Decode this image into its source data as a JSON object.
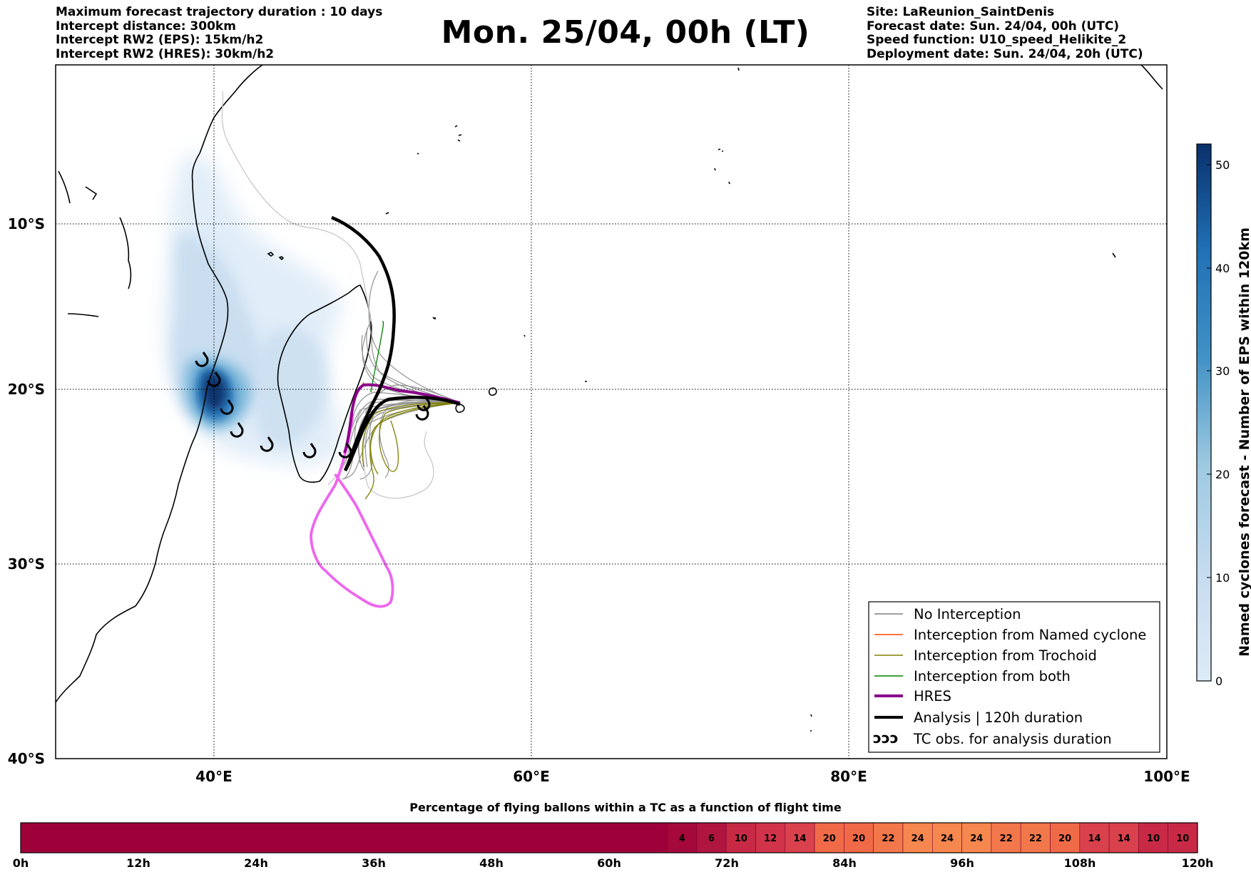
{
  "header": {
    "left": [
      "Maximum forecast trajectory duration : 10 days",
      "Intercept distance: 300km",
      "Intercept RW2 (EPS):  15km/h2",
      "Intercept RW2 (HRES): 30km/h2"
    ],
    "title": "Mon. 25/04, 00h (LT)",
    "right": [
      "Site: LaReunion_SaintDenis",
      "Forecast date: Sun. 24/04, 00h (UTC)",
      "Speed function: U10_speed_Helikite_2",
      "Deployment date: Sun. 24/04, 20h (UTC)"
    ]
  },
  "map": {
    "lat_labels": [
      "10°S",
      "20°S",
      "30°S",
      "40°S"
    ],
    "lon_labels": [
      "40°E",
      "60°E",
      "80°E",
      "100°E"
    ],
    "lon_range": [
      30,
      100
    ],
    "lat_range": [
      -40.0,
      1.0
    ],
    "colors": {
      "no_interception": "#7f7f7f",
      "named_cyclone": "#ff4500",
      "trochoid": "#808000",
      "both": "#008000",
      "hres": "#8b008b",
      "hres_extension": "#ee66ee",
      "analysis": "#000000",
      "density_light": "#deebf7",
      "density_dark": "#08306b"
    }
  },
  "legend": {
    "items": [
      {
        "label": "No Interception",
        "color": "#7f7f7f",
        "width": 1.5
      },
      {
        "label": "Interception from Named cyclone",
        "color": "#ff4500",
        "width": 1.5
      },
      {
        "label": "Interception from Trochoid",
        "color": "#808000",
        "width": 1.5
      },
      {
        "label": "Interception from both",
        "color": "#008000",
        "width": 1.5
      },
      {
        "label": "HRES",
        "color": "#8b008b",
        "width": 4
      },
      {
        "label": "Analysis | 120h duration",
        "color": "#000000",
        "width": 4
      }
    ],
    "tc_symbol": "ↄↄↄ",
    "tc_label": "TC obs. for analysis duration"
  },
  "colorbar": {
    "label": "Named cyclones forecast - Number of EPS within 120km",
    "ticks": [
      "0",
      "10",
      "20",
      "30",
      "40",
      "50"
    ],
    "range": [
      0,
      52
    ]
  },
  "bottom_bar": {
    "title": "Percentage of flying ballons within a TC as a function of flight time",
    "time_labels": [
      "0h",
      "12h",
      "24h",
      "36h",
      "48h",
      "60h",
      "72h",
      "84h",
      "96h",
      "108h",
      "120h"
    ],
    "base_color": "#9e003a",
    "cells": [
      {
        "value": "4",
        "color": "#a5093c"
      },
      {
        "value": "6",
        "color": "#b01540"
      },
      {
        "value": "10",
        "color": "#c82a45"
      },
      {
        "value": "12",
        "color": "#d0334a"
      },
      {
        "value": "14",
        "color": "#d9414c"
      },
      {
        "value": "20",
        "color": "#f06a48"
      },
      {
        "value": "20",
        "color": "#f06a48"
      },
      {
        "value": "22",
        "color": "#f2774a"
      },
      {
        "value": "24",
        "color": "#f5874f"
      },
      {
        "value": "24",
        "color": "#f5874f"
      },
      {
        "value": "24",
        "color": "#f5874f"
      },
      {
        "value": "22",
        "color": "#f2774a"
      },
      {
        "value": "22",
        "color": "#f2774a"
      },
      {
        "value": "20",
        "color": "#f06a48"
      },
      {
        "value": "14",
        "color": "#d9414c"
      },
      {
        "value": "14",
        "color": "#d9414c"
      },
      {
        "value": "10",
        "color": "#c82a45"
      },
      {
        "value": "10",
        "color": "#c82a45"
      }
    ]
  }
}
